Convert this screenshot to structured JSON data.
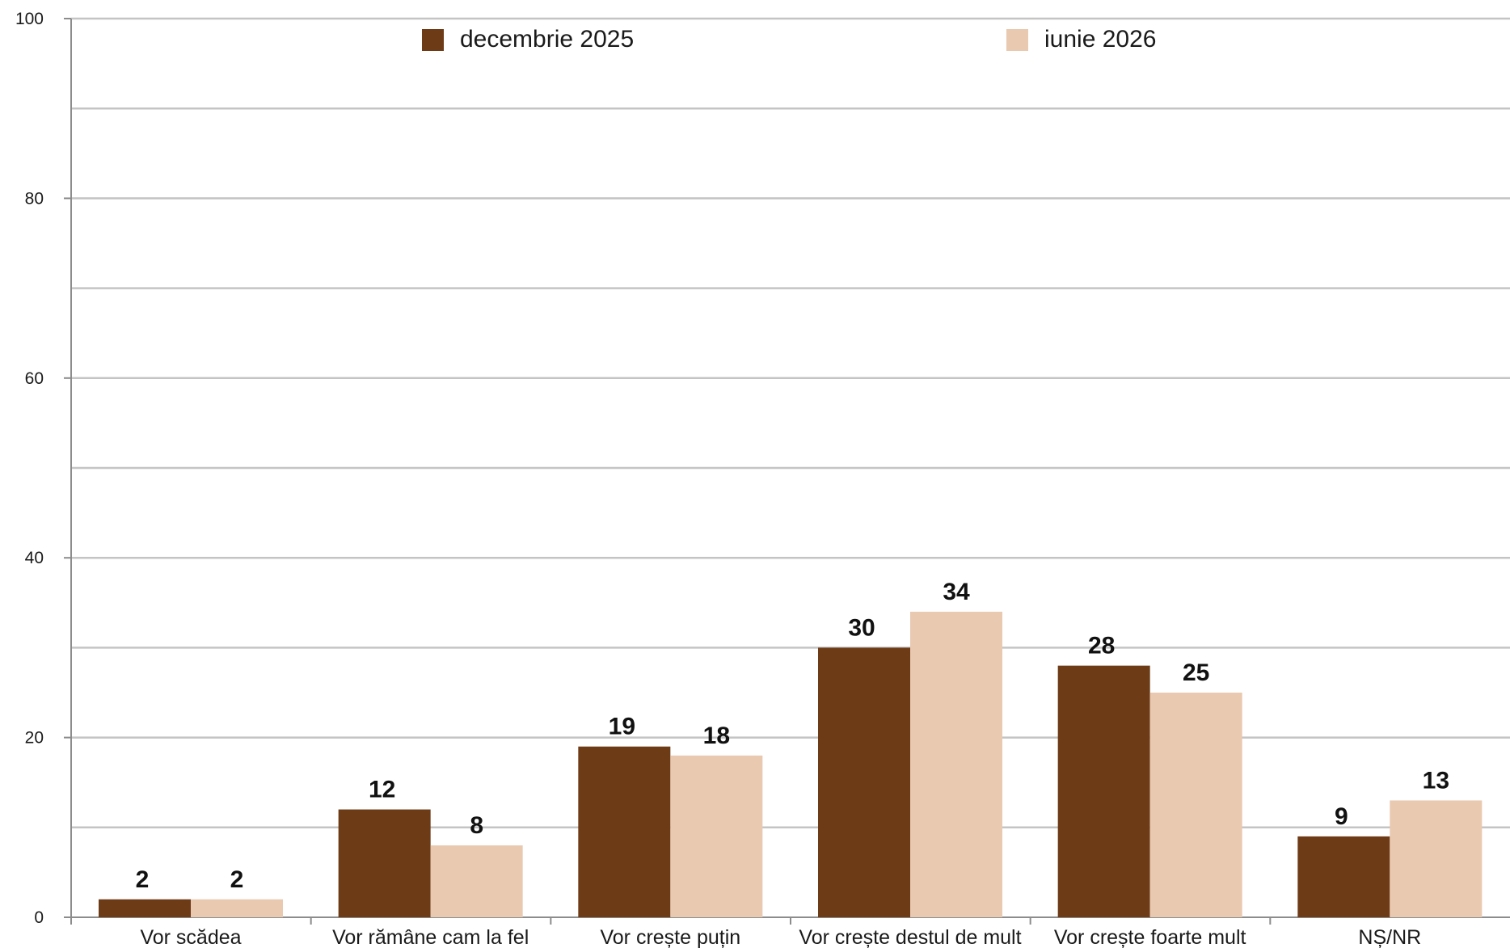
{
  "chart_data": {
    "type": "bar",
    "categories": [
      "Vor scădea",
      "Vor rămâne cam la fel",
      "Vor crește puțin",
      "Vor crește destul de mult",
      "Vor crește foarte mult",
      "NȘ/NR"
    ],
    "series": [
      {
        "name": "decembrie 2025",
        "color": "#6e3b17",
        "values": [
          2,
          12,
          19,
          30,
          28,
          9
        ]
      },
      {
        "name": "iunie 2026",
        "color": "#e9c9b0",
        "values": [
          2,
          8,
          18,
          34,
          25,
          13
        ]
      }
    ],
    "data_labels": [
      [
        "2",
        "12",
        "19",
        "30",
        "28",
        "9"
      ],
      [
        "2",
        "8",
        "18",
        "34",
        "25",
        "13"
      ]
    ],
    "ylim": [
      0,
      100
    ],
    "yticks": [
      "0",
      "20",
      "40",
      "60",
      "80",
      "100"
    ],
    "gridlines": true,
    "legend_position": "top"
  }
}
